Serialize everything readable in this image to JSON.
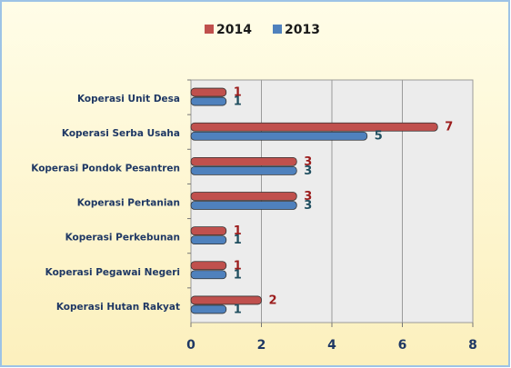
{
  "chart_data": {
    "type": "hbar",
    "categories": [
      "Koperasi Unit Desa",
      "Koperasi Serba Usaha",
      "Koperasi Pondok Pesantren",
      "Koperasi Pertanian",
      "Koperasi Perkebunan",
      "Koperasi Pegawai Negeri",
      "Koperasi Hutan Rakyat"
    ],
    "series": [
      {
        "name": "2014",
        "color": "#c0504d",
        "label_color": "#9b1c1c",
        "values": [
          1,
          7,
          3,
          3,
          1,
          1,
          2
        ]
      },
      {
        "name": "2013",
        "color": "#4f81bd",
        "label_color": "#1f4e5f",
        "values": [
          1,
          5,
          3,
          3,
          1,
          1,
          1
        ]
      }
    ],
    "xlim": [
      0,
      8
    ],
    "xticks": [
      0,
      2,
      4,
      6,
      8
    ],
    "grid": true,
    "legend": "top"
  }
}
